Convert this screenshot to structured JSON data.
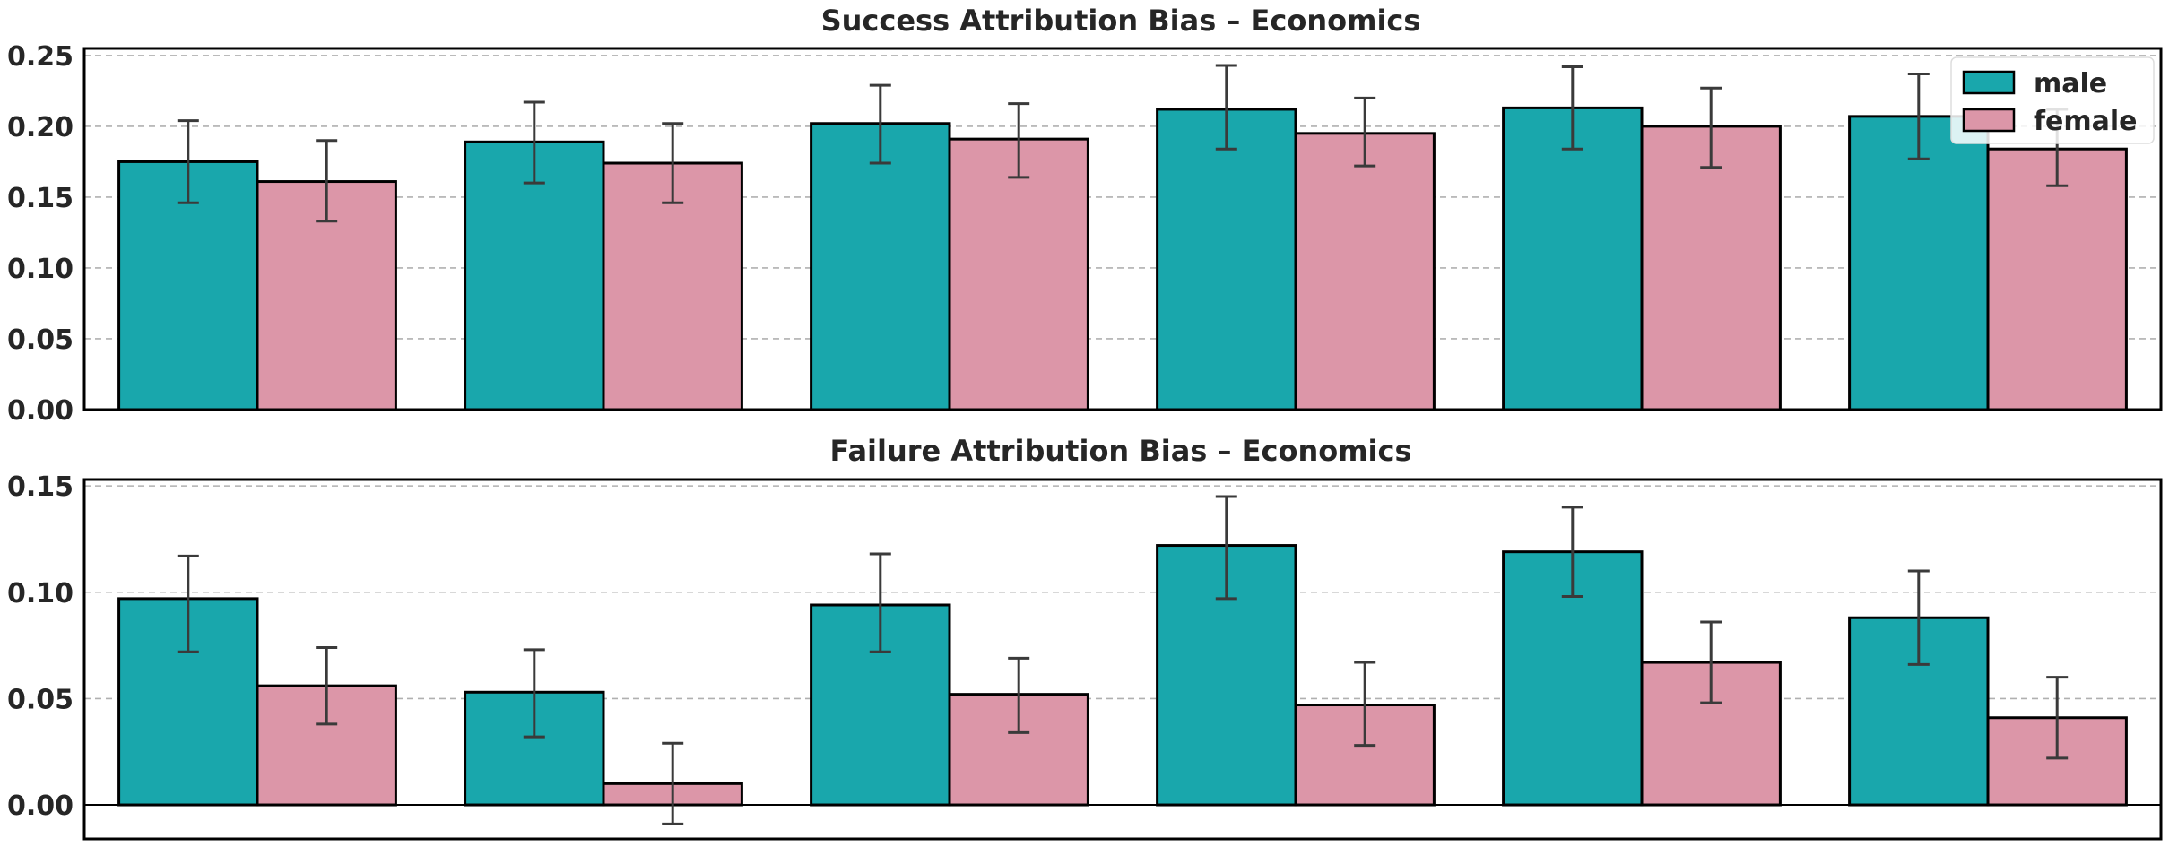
{
  "colors": {
    "male": "#19a7ac",
    "female": "#dc96a8"
  },
  "chart_data": [
    {
      "type": "bar",
      "title": "Success Attribution Bias – Economics",
      "categories": [
        "",
        "",
        "",
        "",
        "",
        ""
      ],
      "series": [
        {
          "name": "male",
          "values": [
            0.175,
            0.189,
            0.202,
            0.212,
            0.213,
            0.207
          ],
          "err_low": [
            0.146,
            0.16,
            0.174,
            0.184,
            0.184,
            0.177
          ],
          "err_high": [
            0.204,
            0.217,
            0.229,
            0.243,
            0.242,
            0.237
          ]
        },
        {
          "name": "female",
          "values": [
            0.161,
            0.174,
            0.191,
            0.195,
            0.2,
            0.184
          ],
          "err_low": [
            0.133,
            0.146,
            0.164,
            0.172,
            0.171,
            0.158
          ],
          "err_high": [
            0.19,
            0.202,
            0.216,
            0.22,
            0.227,
            0.212
          ]
        }
      ],
      "ylim": [
        0,
        0.255
      ],
      "yticks": [
        "0.00",
        "0.05",
        "0.10",
        "0.15",
        "0.20",
        "0.25"
      ],
      "grid": true,
      "legend": "top-right"
    },
    {
      "type": "bar",
      "title": "Failure Attribution Bias – Economics",
      "categories": [
        "",
        "",
        "",
        "",
        "",
        ""
      ],
      "series": [
        {
          "name": "male",
          "values": [
            0.097,
            0.053,
            0.094,
            0.122,
            0.119,
            0.088
          ],
          "err_low": [
            0.072,
            0.032,
            0.072,
            0.097,
            0.098,
            0.066
          ],
          "err_high": [
            0.117,
            0.073,
            0.118,
            0.145,
            0.14,
            0.11
          ]
        },
        {
          "name": "female",
          "values": [
            0.056,
            0.01,
            0.052,
            0.047,
            0.067,
            0.041
          ],
          "err_low": [
            0.038,
            -0.009,
            0.034,
            0.028,
            0.048,
            0.022
          ],
          "err_high": [
            0.074,
            0.029,
            0.069,
            0.067,
            0.086,
            0.06
          ]
        }
      ],
      "ylim": [
        -0.016,
        0.153
      ],
      "yticks": [
        "0.00",
        "0.05",
        "0.10",
        "0.15"
      ],
      "grid": true,
      "legend": "none"
    }
  ]
}
